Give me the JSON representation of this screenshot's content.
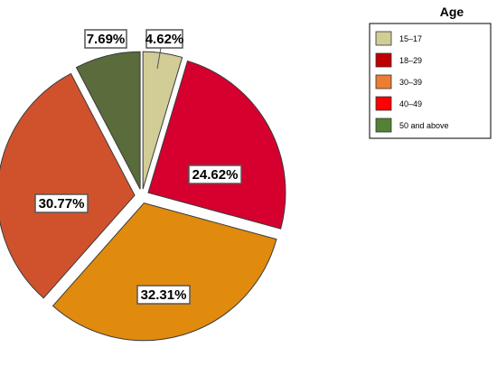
{
  "chart_data": {
    "type": "pie",
    "exploded": true,
    "legend_title": "Age",
    "legend_position": "top-right",
    "legend_entries": [
      {
        "label": "15–17",
        "color": "#d2cc96"
      },
      {
        "label": "18–29",
        "color": "#c00000"
      },
      {
        "label": "30–39",
        "color": "#ed7d31"
      },
      {
        "label": "40–49",
        "color": "#ff0000"
      },
      {
        "label": "50 and above",
        "color": "#548235"
      }
    ],
    "slices": [
      {
        "value": 4.62,
        "label": "4.62%",
        "color": "#d2cc96"
      },
      {
        "value": 24.62,
        "label": "24.62%",
        "color": "#d6002f"
      },
      {
        "value": 32.31,
        "label": "32.31%",
        "color": "#e08a0e"
      },
      {
        "value": 30.77,
        "label": "30.77%",
        "color": "#d0522d"
      },
      {
        "value": 7.69,
        "label": "7.69%",
        "color": "#5a6b3c"
      }
    ]
  }
}
